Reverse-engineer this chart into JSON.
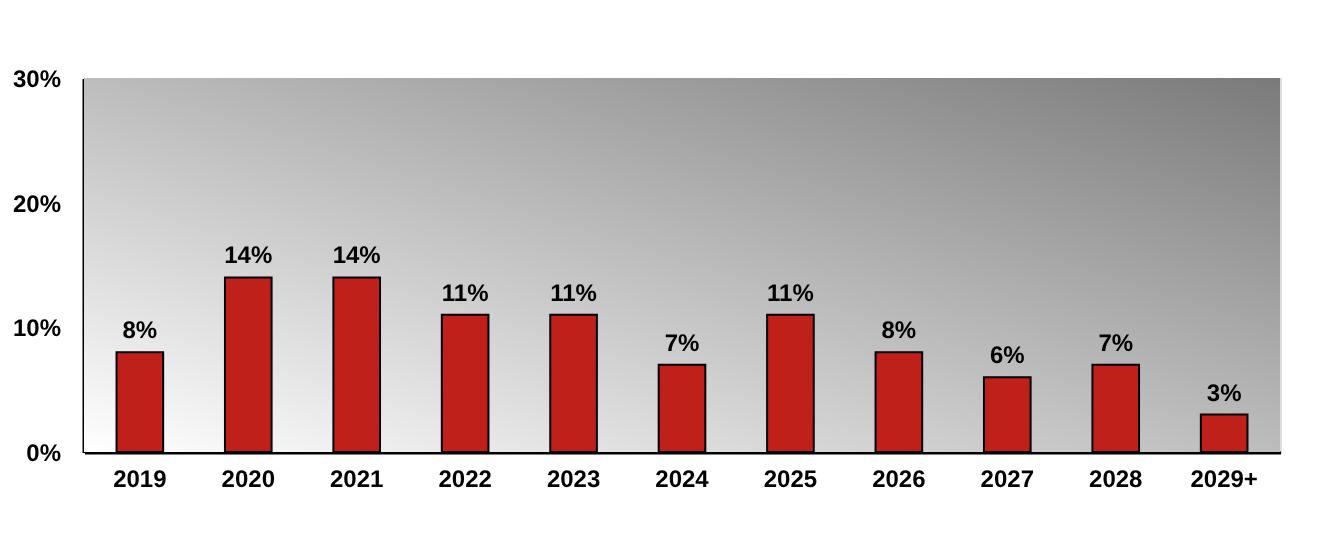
{
  "chart_data": {
    "type": "bar",
    "categories": [
      "2019",
      "2020",
      "2021",
      "2022",
      "2023",
      "2024",
      "2025",
      "2026",
      "2027",
      "2028",
      "2029+"
    ],
    "values": [
      8,
      14,
      14,
      11,
      11,
      7,
      11,
      8,
      6,
      7,
      3
    ],
    "value_labels": [
      "8%",
      "14%",
      "14%",
      "11%",
      "11%",
      "7%",
      "11%",
      "8%",
      "6%",
      "7%",
      "3%"
    ],
    "color": "#c0201a",
    "ylim": [
      0,
      30
    ],
    "yticks": [
      {
        "value": 0,
        "label": "0%"
      },
      {
        "value": 10,
        "label": "10%"
      },
      {
        "value": 20,
        "label": "20%"
      },
      {
        "value": 30,
        "label": "30%"
      }
    ]
  }
}
